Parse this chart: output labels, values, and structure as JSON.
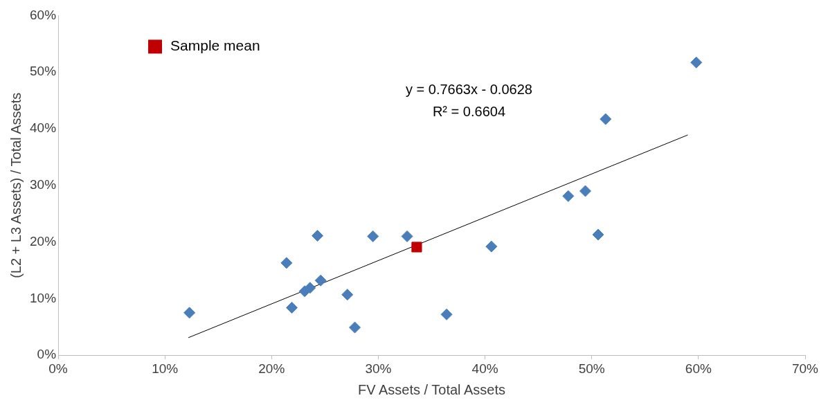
{
  "chart_data": {
    "type": "scatter",
    "xlabel": "FV Assets / Total Assets",
    "ylabel": "(L2 + L3 Assets) / Total Assets",
    "xlim": [
      0,
      70
    ],
    "ylim": [
      0,
      60
    ],
    "xticks": [
      {
        "value": 0,
        "label": "0%"
      },
      {
        "value": 10,
        "label": "10%"
      },
      {
        "value": 20,
        "label": "20%"
      },
      {
        "value": 30,
        "label": "30%"
      },
      {
        "value": 40,
        "label": "40%"
      },
      {
        "value": 50,
        "label": "50%"
      },
      {
        "value": 60,
        "label": "60%"
      },
      {
        "value": 70,
        "label": "70%"
      }
    ],
    "yticks": [
      {
        "value": 0,
        "label": "0%"
      },
      {
        "value": 10,
        "label": "10%"
      },
      {
        "value": 20,
        "label": "20%"
      },
      {
        "value": 30,
        "label": "30%"
      },
      {
        "value": 40,
        "label": "40%"
      },
      {
        "value": 50,
        "label": "50%"
      },
      {
        "value": 60,
        "label": "60%"
      }
    ],
    "grid": false,
    "legend": "top left",
    "annotations": [
      "y = 0.7663x - 0.0628",
      "R² = 0.6604"
    ],
    "series": [
      {
        "color": "#4a7ebb",
        "marker": "diamond",
        "x": [
          12.3,
          21.4,
          21.9,
          23.1,
          23.6,
          24.6,
          24.3,
          27.1,
          27.8,
          29.5,
          32.7,
          36.4,
          40.6,
          47.8,
          49.4,
          50.6,
          51.3,
          59.8
        ],
        "values": [
          7.5,
          16.3,
          8.4,
          11.3,
          11.9,
          13.2,
          21.1,
          10.7,
          4.9,
          21.0,
          21.0,
          7.2,
          19.2,
          28.1,
          29.0,
          21.3,
          41.7,
          51.7
        ]
      },
      {
        "type": "line",
        "color": "#000000",
        "marker": "none",
        "x": [
          12.2,
          59
        ],
        "values": [
          3.1,
          38.9
        ]
      },
      {
        "name": "Sample mean",
        "color": "#c00000",
        "marker": "square",
        "x": [
          33.6
        ],
        "values": [
          19.1
        ]
      }
    ]
  }
}
